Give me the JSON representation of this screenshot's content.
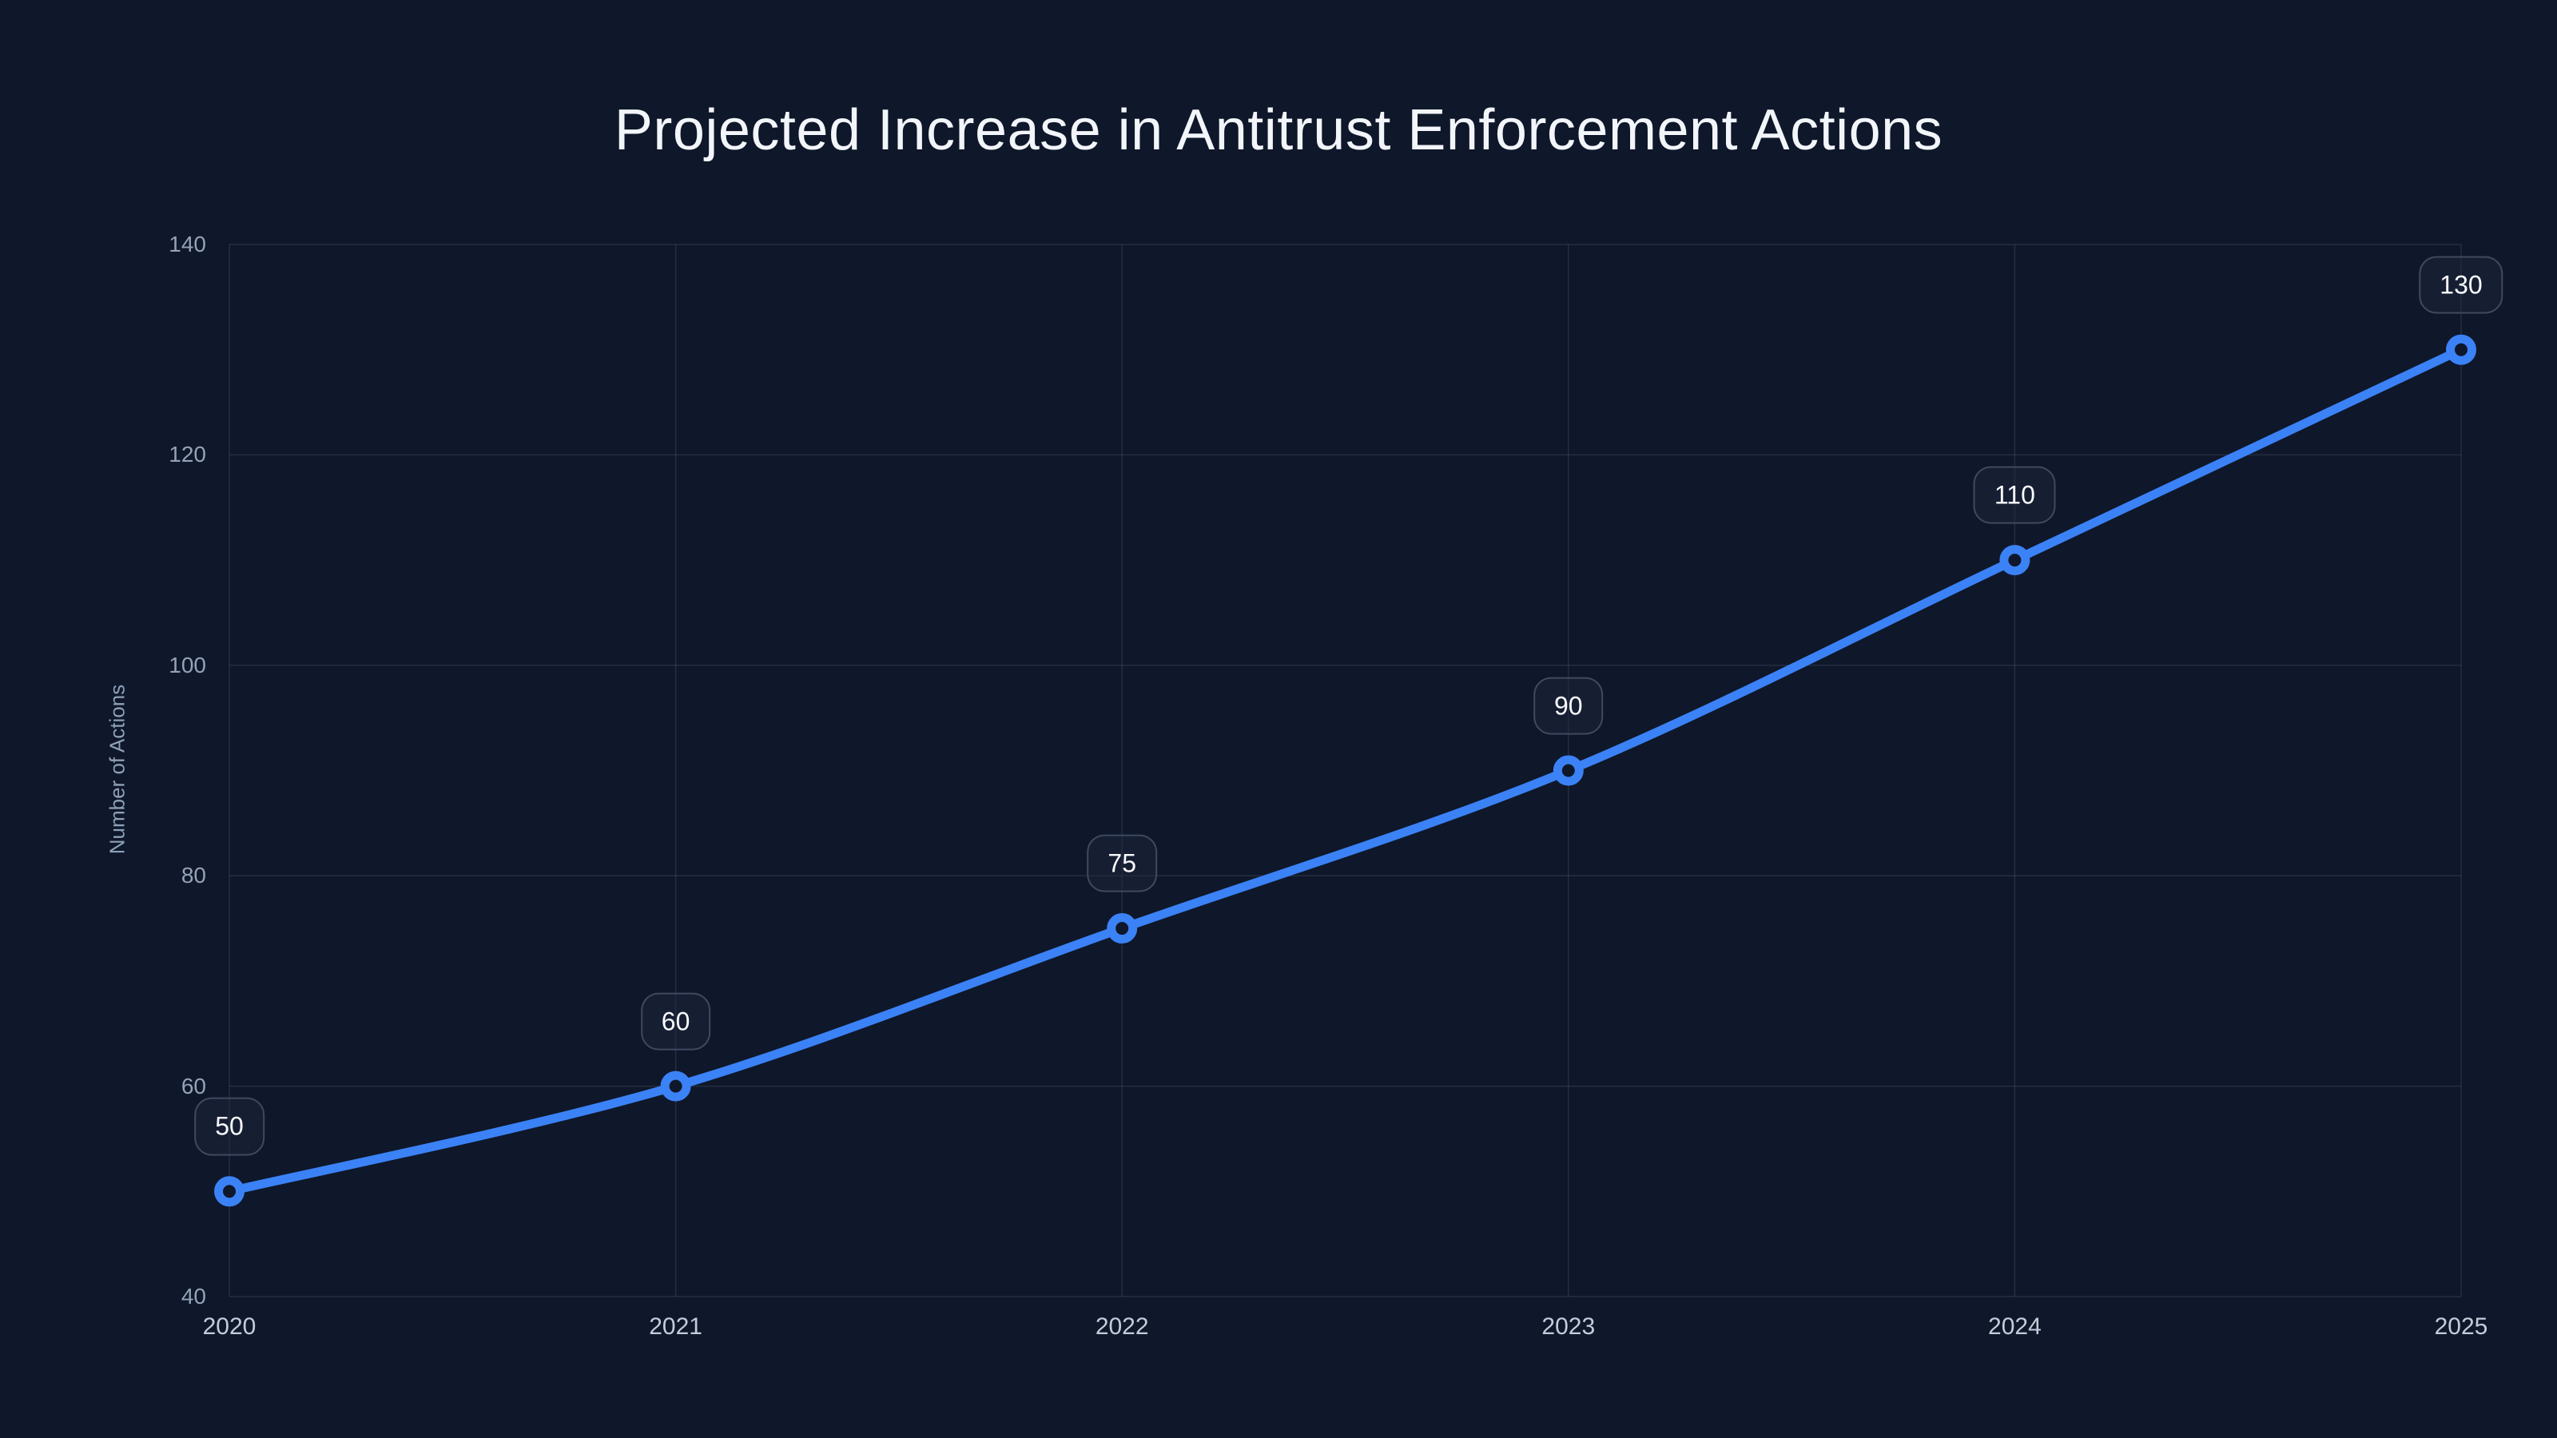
{
  "page": {
    "background_color": "#0f172a"
  },
  "chart_data": {
    "type": "line",
    "title": "Projected Increase in Antitrust Enforcement Actions",
    "xlabel": "",
    "ylabel": "Number of Actions",
    "x": [
      2020,
      2021,
      2022,
      2023,
      2024,
      2025
    ],
    "x_tick_labels": [
      "2020",
      "2021",
      "2022",
      "2023",
      "2024",
      "2025"
    ],
    "series": [
      {
        "name": "Number of Actions",
        "values": [
          50,
          60,
          75,
          90,
          110,
          130
        ],
        "point_labels": [
          "50",
          "60",
          "75",
          "90",
          "110",
          "130"
        ],
        "line_color": "#3b82f6",
        "marker": "open-circle"
      }
    ],
    "ylim": [
      40,
      140
    ],
    "yticks": [
      40,
      60,
      80,
      100,
      120,
      140
    ],
    "ytick_labels": [
      "40",
      "60",
      "80",
      "100",
      "120",
      "140"
    ],
    "grid": true,
    "legend": false,
    "colors": {
      "background": "#0f172a",
      "line": "#3b82f6",
      "grid": "rgba(148, 163, 184, 0.16)",
      "title_text": "#f2f5f9",
      "y_tick_text": "#94a3b8",
      "x_tick_text": "#c3cdda",
      "axis_title_text": "#8da0b8",
      "badge_text": "#f8fafc",
      "badge_border": "#3d4a5f"
    }
  }
}
